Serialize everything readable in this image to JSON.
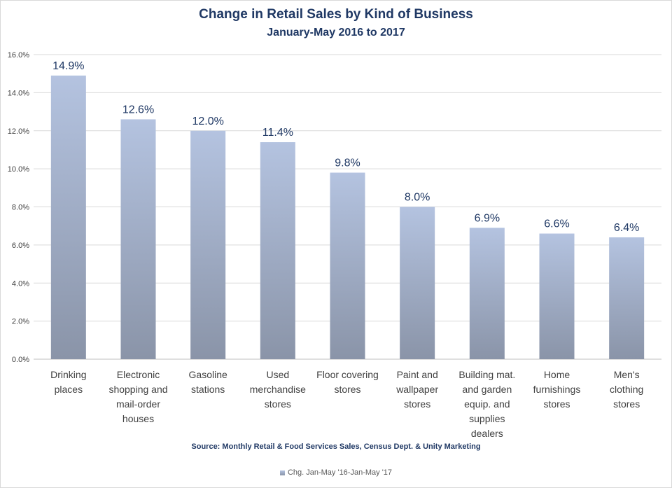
{
  "chart_data": {
    "type": "bar",
    "title": "Change in Retail Sales by Kind of Business",
    "subtitle": "January-May 2016 to 2017",
    "categories": [
      [
        "Drinking",
        "places"
      ],
      [
        "Electronic",
        "shopping and",
        "mail-order",
        "houses"
      ],
      [
        "Gasoline",
        "stations"
      ],
      [
        "Used",
        "merchandise",
        "stores"
      ],
      [
        "Floor covering",
        "stores"
      ],
      [
        "Paint and",
        "wallpaper",
        "stores"
      ],
      [
        "Building mat.",
        "and garden",
        "equip. and",
        "supplies",
        "dealers"
      ],
      [
        "Home",
        "furnishings",
        "stores"
      ],
      [
        "Men's",
        "clothing",
        "stores"
      ]
    ],
    "series": [
      {
        "name": "Chg. Jan-May '16-Jan-May '17",
        "values": [
          14.9,
          12.6,
          12.0,
          11.4,
          9.8,
          8.0,
          6.9,
          6.6,
          6.4
        ],
        "labels": [
          "14.9%",
          "12.6%",
          "12.0%",
          "11.4%",
          "9.8%",
          "8.0%",
          "6.9%",
          "6.6%",
          "6.4%"
        ]
      }
    ],
    "ylim": [
      0,
      16
    ],
    "y_ticks": [
      0,
      2,
      4,
      6,
      8,
      10,
      12,
      14,
      16
    ],
    "y_tick_labels": [
      "0.0%",
      "2.0%",
      "4.0%",
      "6.0%",
      "8.0%",
      "10.0%",
      "12.0%",
      "14.0%",
      "16.0%"
    ],
    "grid": true,
    "legend_position": "bottom",
    "source": "Source:  Monthly Retail & Food Services Sales, Census Dept. & Unity Marketing",
    "bar_color_top": "#b4c3e0",
    "bar_color_bottom": "#8a94a8"
  }
}
